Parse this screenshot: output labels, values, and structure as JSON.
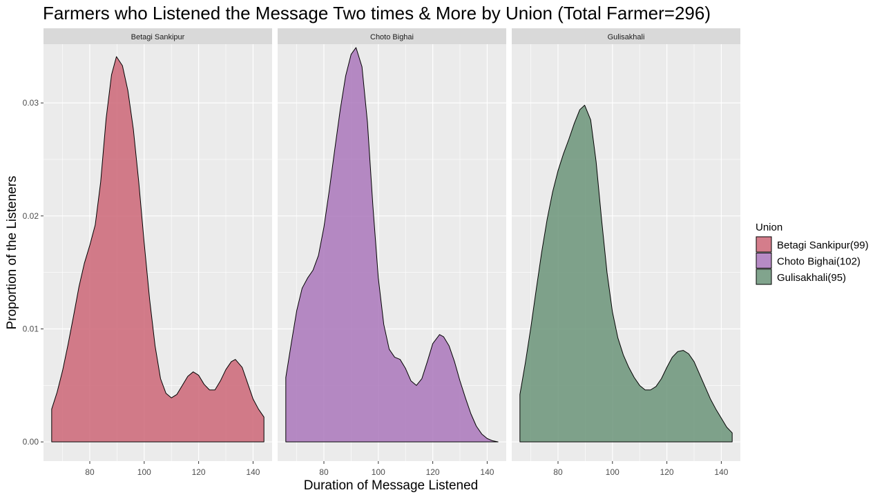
{
  "chart_data": {
    "type": "area",
    "subtype": "density",
    "title": "Farmers who Listened the Message Two times & More by Union (Total Farmer=296)",
    "xlabel": "Duration of Message Listened",
    "ylabel": "Proportion of the Listeners",
    "xlim": [
      63,
      147
    ],
    "ylim": [
      -0.0017,
      0.0352
    ],
    "x_ticks": [
      80,
      100,
      120,
      140
    ],
    "x_tick_labels": [
      "80",
      "100",
      "120",
      "140"
    ],
    "y_ticks": [
      0,
      0.01,
      0.02,
      0.03
    ],
    "y_tick_labels": [
      "0.00",
      "0.01",
      "0.02",
      "0.03"
    ],
    "grid": true,
    "legend": {
      "title": "Union",
      "position": "right"
    },
    "panels": [
      {
        "name": "Betagi Sankipur",
        "legend_label": "Betagi Sankipur(99)",
        "color": "#cc6677",
        "points": [
          [
            66,
            0.0
          ],
          [
            66,
            0.0029
          ],
          [
            68,
            0.0044
          ],
          [
            70,
            0.0063
          ],
          [
            72,
            0.0086
          ],
          [
            74,
            0.0111
          ],
          [
            76,
            0.0137
          ],
          [
            78,
            0.0158
          ],
          [
            80,
            0.0174
          ],
          [
            82,
            0.0192
          ],
          [
            84,
            0.023
          ],
          [
            86,
            0.0286
          ],
          [
            88,
            0.0325
          ],
          [
            89.8,
            0.0341
          ],
          [
            92,
            0.0333
          ],
          [
            94,
            0.0311
          ],
          [
            96,
            0.0277
          ],
          [
            98,
            0.023
          ],
          [
            100,
            0.0176
          ],
          [
            102,
            0.0126
          ],
          [
            104,
            0.0085
          ],
          [
            106,
            0.0056
          ],
          [
            108,
            0.0043
          ],
          [
            110,
            0.0039
          ],
          [
            112,
            0.0042
          ],
          [
            114,
            0.005
          ],
          [
            116,
            0.0058
          ],
          [
            118,
            0.0062
          ],
          [
            120,
            0.0059
          ],
          [
            122,
            0.0051
          ],
          [
            124,
            0.0046
          ],
          [
            126,
            0.0046
          ],
          [
            128,
            0.0054
          ],
          [
            130,
            0.0064
          ],
          [
            132,
            0.0071
          ],
          [
            133.5,
            0.0073
          ],
          [
            136,
            0.0066
          ],
          [
            138,
            0.0052
          ],
          [
            140,
            0.0038
          ],
          [
            142,
            0.0029
          ],
          [
            144,
            0.0022
          ],
          [
            144,
            0.0
          ]
        ]
      },
      {
        "name": "Choto Bighai",
        "legend_label": "Choto Bighai(102)",
        "color": "#aa77bb",
        "points": [
          [
            66,
            0.0
          ],
          [
            66,
            0.0057
          ],
          [
            68,
            0.0087
          ],
          [
            70,
            0.0116
          ],
          [
            72,
            0.0136
          ],
          [
            74,
            0.0145
          ],
          [
            76,
            0.0152
          ],
          [
            78,
            0.0165
          ],
          [
            80,
            0.019
          ],
          [
            82,
            0.0223
          ],
          [
            84,
            0.0259
          ],
          [
            86,
            0.0294
          ],
          [
            88,
            0.0324
          ],
          [
            90,
            0.0343
          ],
          [
            91.8,
            0.0349
          ],
          [
            94,
            0.0332
          ],
          [
            96,
            0.0283
          ],
          [
            98,
            0.0209
          ],
          [
            100,
            0.0145
          ],
          [
            102,
            0.0104
          ],
          [
            104,
            0.0082
          ],
          [
            106,
            0.0075
          ],
          [
            108,
            0.0073
          ],
          [
            110,
            0.0065
          ],
          [
            112,
            0.0054
          ],
          [
            114,
            0.005
          ],
          [
            116,
            0.0056
          ],
          [
            118,
            0.0071
          ],
          [
            120,
            0.0087
          ],
          [
            122.5,
            0.0095
          ],
          [
            124,
            0.0093
          ],
          [
            126,
            0.0085
          ],
          [
            128,
            0.0071
          ],
          [
            130,
            0.0054
          ],
          [
            132,
            0.0039
          ],
          [
            134,
            0.0025
          ],
          [
            136,
            0.0014
          ],
          [
            138,
            0.0007
          ],
          [
            140,
            0.0003
          ],
          [
            142,
            0.0001
          ],
          [
            144,
            0.0
          ],
          [
            144,
            0.0
          ]
        ]
      },
      {
        "name": "Gulisakhali",
        "legend_label": "Gulisakhali(95)",
        "color": "#6b9479",
        "points": [
          [
            66,
            0.0
          ],
          [
            66,
            0.0042
          ],
          [
            68,
            0.007
          ],
          [
            70,
            0.0101
          ],
          [
            72,
            0.0135
          ],
          [
            74,
            0.0168
          ],
          [
            76,
            0.0197
          ],
          [
            78,
            0.0221
          ],
          [
            80,
            0.024
          ],
          [
            82,
            0.0255
          ],
          [
            84,
            0.0268
          ],
          [
            86,
            0.0282
          ],
          [
            88,
            0.0294
          ],
          [
            89.8,
            0.0298
          ],
          [
            92,
            0.0285
          ],
          [
            94,
            0.0248
          ],
          [
            96,
            0.0197
          ],
          [
            98,
            0.015
          ],
          [
            100,
            0.0115
          ],
          [
            102,
            0.0092
          ],
          [
            104,
            0.0077
          ],
          [
            106,
            0.0066
          ],
          [
            108,
            0.0057
          ],
          [
            110,
            0.005
          ],
          [
            112,
            0.0046
          ],
          [
            114,
            0.0046
          ],
          [
            116,
            0.0049
          ],
          [
            118,
            0.0056
          ],
          [
            120,
            0.0066
          ],
          [
            122,
            0.0075
          ],
          [
            124,
            0.008
          ],
          [
            126,
            0.0081
          ],
          [
            128,
            0.0078
          ],
          [
            130,
            0.0071
          ],
          [
            132,
            0.006
          ],
          [
            134,
            0.0049
          ],
          [
            136,
            0.0038
          ],
          [
            138,
            0.0029
          ],
          [
            140,
            0.0021
          ],
          [
            142,
            0.0013
          ],
          [
            144,
            0.0008
          ],
          [
            144,
            0.0
          ]
        ]
      }
    ]
  }
}
